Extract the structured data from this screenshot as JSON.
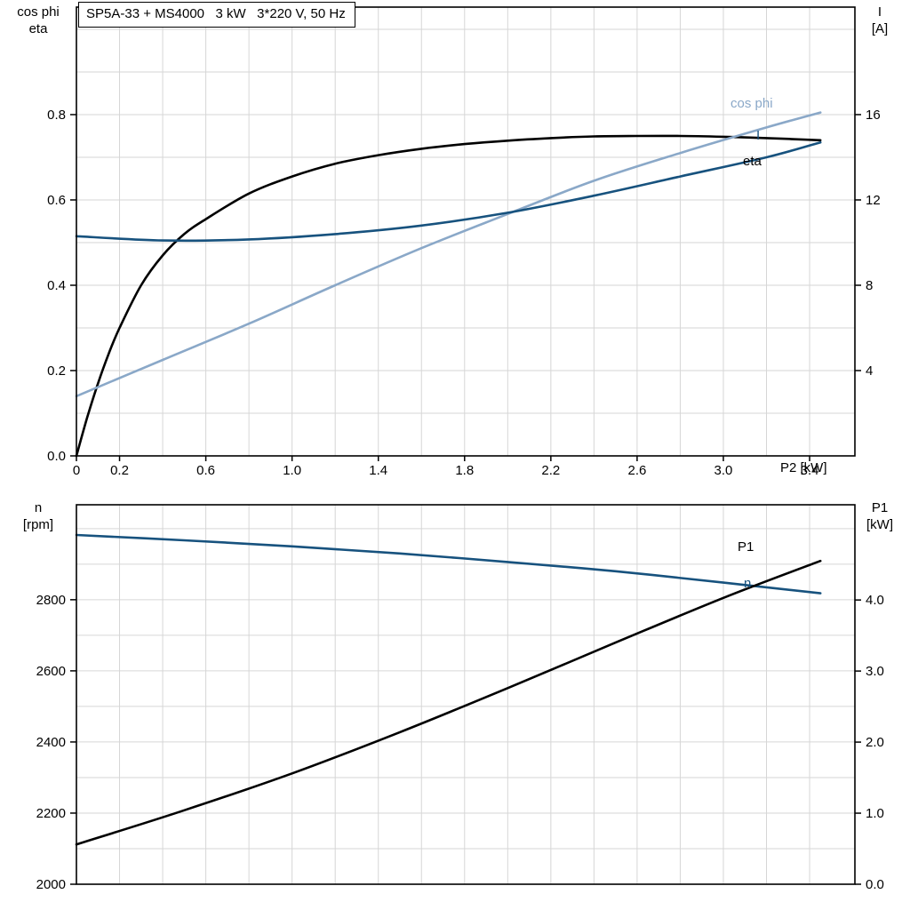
{
  "title_box": {
    "text": "SP5A-33 + MS4000   3 kW   3*220 V, 50 Hz"
  },
  "colors": {
    "black": "#000000",
    "dark_blue": "#17527e",
    "light_blue": "#8aa8c8",
    "grid": "#d6d6d6",
    "axis": "#000000",
    "background": "#ffffff"
  },
  "axis_corner_labels": {
    "top_left_line1": "cos phi",
    "top_left_line2": "eta",
    "top_right_line1": "I",
    "top_right_line2": "[A]",
    "x_axis": "P2 [kW]",
    "bottom_left_line1": "n",
    "bottom_left_line2": "[rpm]",
    "bottom_right_line1": "P1",
    "bottom_right_line2": "[kW]"
  },
  "curve_labels": {
    "cos_phi": "cos phi",
    "current": "I",
    "eta": "eta",
    "p1": "P1",
    "n": "n"
  },
  "chart_data": [
    {
      "type": "line",
      "title": "SP5A-33 + MS4000   3 kW   3*220 V, 50 Hz",
      "x": {
        "label": "P2 [kW]",
        "min": 0,
        "max": 3.61,
        "grid_step": 0.2,
        "ticks": [
          0,
          0.2,
          0.6,
          1.0,
          1.4,
          1.8,
          2.2,
          2.6,
          3.0,
          3.4
        ],
        "tick_labels": [
          "0",
          "0.2",
          "0.6",
          "1.0",
          "1.4",
          "1.8",
          "2.2",
          "2.6",
          "3.0",
          "3.4"
        ]
      },
      "y_left": {
        "label": "cos phi / eta",
        "min": 0,
        "max": 1.052,
        "grid_step": 0.1,
        "ticks": [
          0,
          0.2,
          0.4,
          0.6,
          0.8
        ],
        "tick_labels": [
          "0.0",
          "0.2",
          "0.4",
          "0.6",
          "0.8"
        ]
      },
      "y_right": {
        "label": "I [A]",
        "min": 0,
        "max": 21.04,
        "ticks": [
          4,
          8,
          12,
          16
        ],
        "tick_labels": [
          "4",
          "8",
          "12",
          "16"
        ]
      },
      "series": [
        {
          "name": "eta",
          "axis": "left",
          "color": "black",
          "x": [
            0,
            0.05,
            0.1,
            0.15,
            0.2,
            0.3,
            0.4,
            0.5,
            0.6,
            0.8,
            1.0,
            1.2,
            1.4,
            1.6,
            1.8,
            2.0,
            2.2,
            2.4,
            2.6,
            2.8,
            3.0,
            3.2,
            3.45
          ],
          "y": [
            0,
            0.09,
            0.17,
            0.24,
            0.3,
            0.4,
            0.47,
            0.52,
            0.555,
            0.615,
            0.655,
            0.685,
            0.705,
            0.72,
            0.731,
            0.739,
            0.745,
            0.749,
            0.75,
            0.75,
            0.748,
            0.745,
            0.74
          ]
        },
        {
          "name": "cos phi",
          "axis": "left",
          "color": "light_blue",
          "x": [
            0,
            0.4,
            0.8,
            1.2,
            1.6,
            2.0,
            2.4,
            2.8,
            3.2,
            3.45
          ],
          "y": [
            0.14,
            0.225,
            0.31,
            0.4,
            0.487,
            0.567,
            0.645,
            0.71,
            0.77,
            0.805
          ]
        },
        {
          "name": "I",
          "axis": "right",
          "color": "dark_blue",
          "x": [
            0,
            0.4,
            0.8,
            1.2,
            1.6,
            2.0,
            2.4,
            2.8,
            3.2,
            3.45
          ],
          "y": [
            10.3,
            10.1,
            10.15,
            10.4,
            10.8,
            11.4,
            12.2,
            13.1,
            14.0,
            14.7
          ]
        }
      ]
    },
    {
      "type": "line",
      "title": "",
      "x": {
        "label": "P2 [kW]",
        "min": 0,
        "max": 3.61,
        "grid_step": 0.2,
        "ticks": [],
        "tick_labels": []
      },
      "y_left": {
        "label": "n [rpm]",
        "min": 2000,
        "max": 3067,
        "grid_step": 100,
        "ticks": [
          2000,
          2200,
          2400,
          2600,
          2800
        ],
        "tick_labels": [
          "2000",
          "2200",
          "2400",
          "2600",
          "2800"
        ]
      },
      "y_right": {
        "label": "P1 [kW]",
        "min": 0,
        "max": 5.34,
        "ticks": [
          0,
          1,
          2,
          3,
          4
        ],
        "tick_labels": [
          "0.0",
          "1.0",
          "2.0",
          "3.0",
          "4.0"
        ]
      },
      "series": [
        {
          "name": "n",
          "axis": "left",
          "color": "dark_blue",
          "x": [
            0,
            0.5,
            1.0,
            1.5,
            2.0,
            2.5,
            3.0,
            3.45
          ],
          "y": [
            2982,
            2967,
            2950,
            2930,
            2906,
            2880,
            2848,
            2818
          ]
        },
        {
          "name": "P1",
          "axis": "right",
          "color": "black",
          "x": [
            0,
            0.5,
            1.0,
            1.5,
            2.0,
            2.5,
            3.0,
            3.45
          ],
          "y": [
            0.56,
            1.04,
            1.56,
            2.14,
            2.76,
            3.4,
            4.03,
            4.55
          ]
        }
      ]
    }
  ]
}
